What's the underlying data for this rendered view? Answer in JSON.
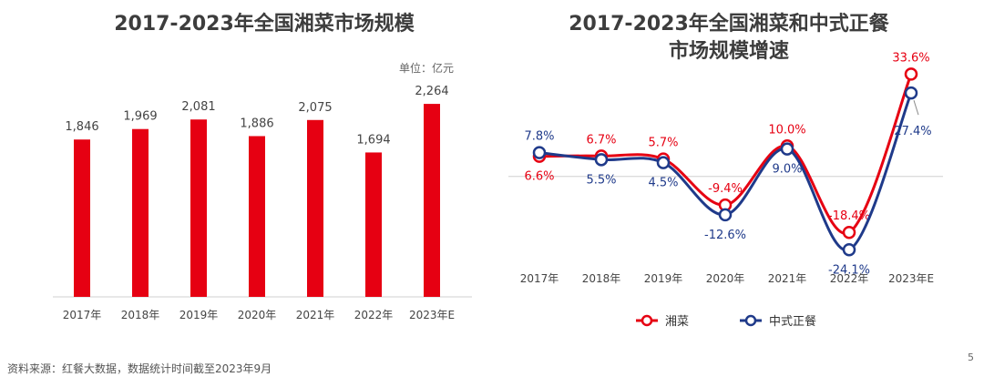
{
  "page_number": "5",
  "source": "资料来源：红餐大数据，数据统计时间截至2023年9月",
  "colors": {
    "red": "#e60012",
    "navy": "#1f3a8a",
    "axis": "#d0d0d0"
  },
  "chart_data": [
    {
      "type": "bar",
      "title": "2017-2023年全国湘菜市场规模",
      "unit": "单位：亿元",
      "categories": [
        "2017年",
        "2018年",
        "2019年",
        "2020年",
        "2021年",
        "2022年",
        "2023年E"
      ],
      "values": [
        1846,
        1969,
        2081,
        1886,
        2075,
        1694,
        2264
      ],
      "value_labels": [
        "1,846",
        "1,969",
        "2,081",
        "1,886",
        "2,075",
        "1,694",
        "2,264"
      ],
      "ylim": [
        0,
        2500
      ]
    },
    {
      "type": "line",
      "title_lines": [
        "2017-2023年全国湘菜和中式正餐",
        "市场规模增速"
      ],
      "categories": [
        "2017年",
        "2018年",
        "2019年",
        "2020年",
        "2021年",
        "2022年",
        "2023年E"
      ],
      "series": [
        {
          "name": "湘菜",
          "values": [
            6.6,
            6.7,
            5.7,
            -9.4,
            10.0,
            -18.4,
            33.6
          ],
          "labels": [
            "6.6%",
            "6.7%",
            "5.7%",
            "-9.4%",
            "10.0%",
            "-18.4%",
            "33.6%"
          ]
        },
        {
          "name": "中式正餐",
          "values": [
            7.8,
            5.5,
            4.5,
            -12.6,
            9.0,
            -24.1,
            27.4
          ],
          "labels": [
            "7.8%",
            "5.5%",
            "4.5%",
            "-12.6%",
            "9.0%",
            "-24.1%",
            "27.4%"
          ]
        }
      ],
      "ylim": [
        -30,
        40
      ],
      "legend_position": "bottom"
    }
  ]
}
